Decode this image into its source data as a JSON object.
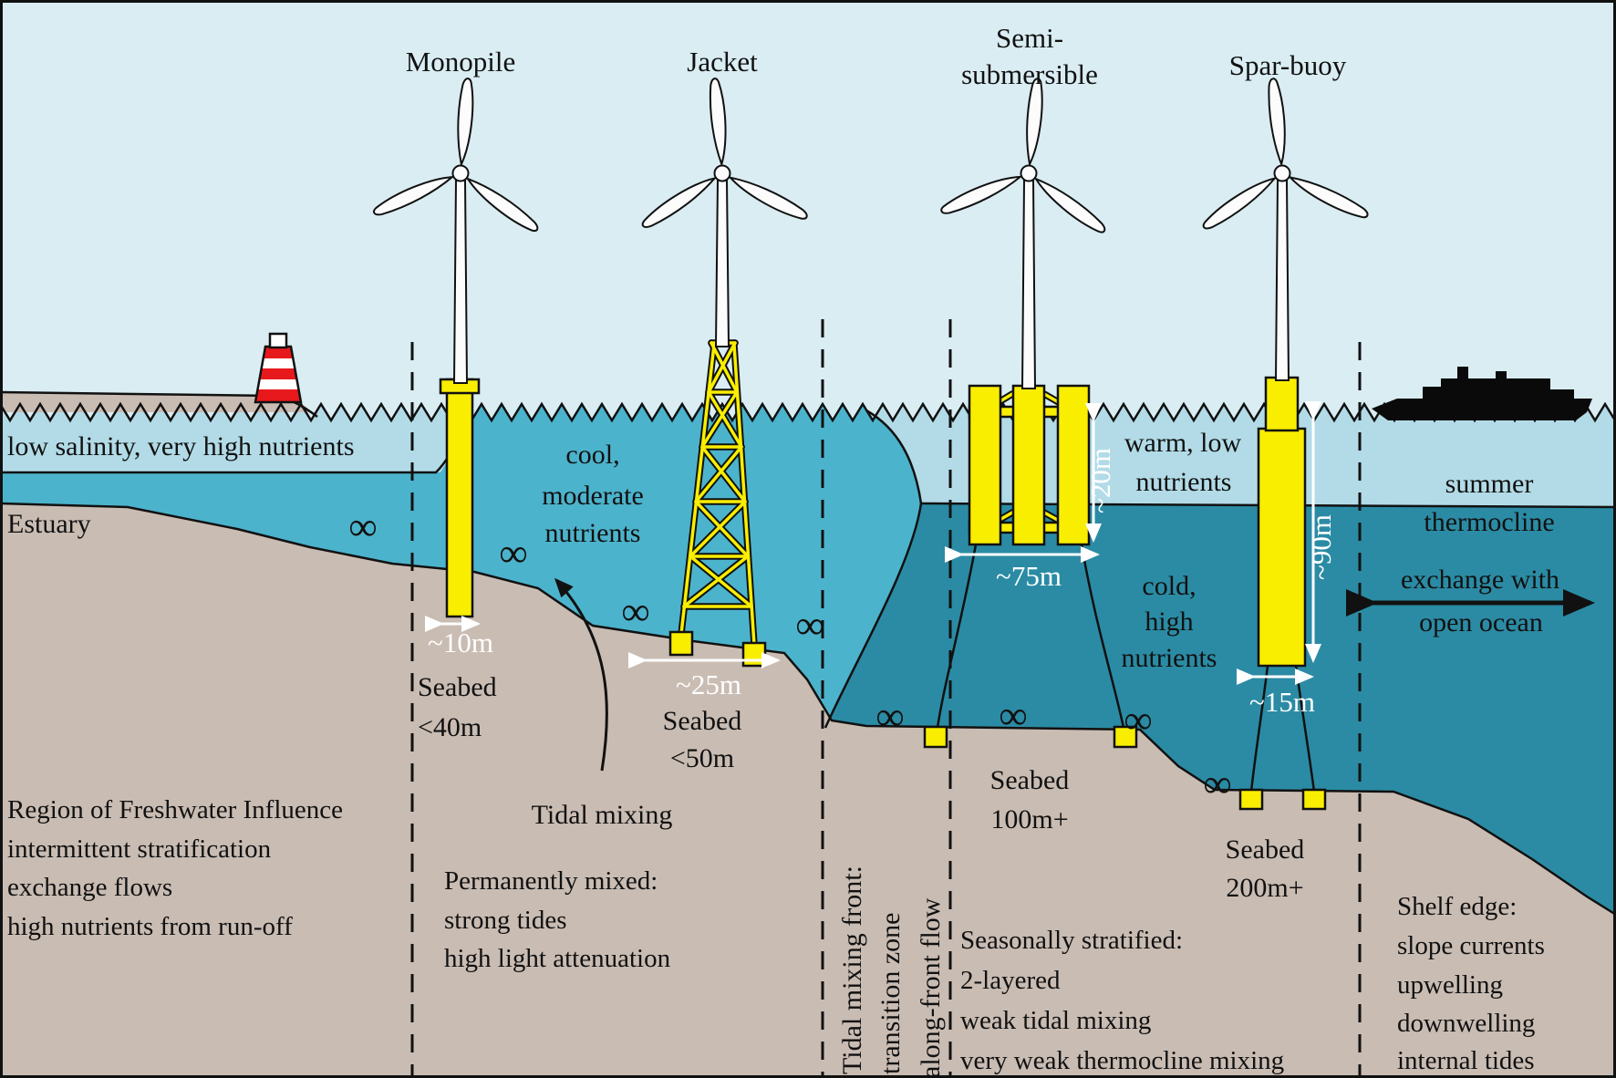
{
  "diagram": {
    "turbine_labels": {
      "monopile": "Monopile",
      "jacket": "Jacket",
      "semisub_line1": "Semi-",
      "semisub_line2": "submersible",
      "spar": "Spar-buoy"
    },
    "water_labels": {
      "low_salinity": "low salinity, very high nutrients",
      "estuary": "Estuary",
      "cool": [
        "cool,",
        "moderate",
        "nutrients"
      ],
      "warm": [
        "warm, low",
        "nutrients"
      ],
      "cold": [
        "cold,",
        "high",
        "nutrients"
      ],
      "summer": [
        "summer",
        "thermocline"
      ],
      "exchange": [
        "exchange with",
        "open ocean"
      ]
    },
    "seabed_labels": {
      "s40": [
        "Seabed",
        "<40m"
      ],
      "s50": [
        "Seabed",
        "<50m"
      ],
      "s100": [
        "Seabed",
        "100m+"
      ],
      "s200": [
        "Seabed",
        "200m+"
      ]
    },
    "dimensions": {
      "monopile_width": "~10m",
      "jacket_width": "~25m",
      "semisub_width": "~75m",
      "semisub_draft": "~20m",
      "spar_draft": "~90m",
      "spar_width": "~15m"
    },
    "zone_texts": {
      "rofi": [
        "Region of Freshwater Influence",
        "intermittent stratification",
        "exchange flows",
        "high nutrients from run-off"
      ],
      "mixed_title": "Tidal mixing",
      "mixed": [
        "Permanently mixed:",
        "strong tides",
        "high light attenuation"
      ],
      "front": [
        "Tidal mixing front:",
        "transition zone",
        "along-front flow"
      ],
      "stratified": [
        "Seasonally stratified:",
        "2-layered",
        "weak tidal mixing",
        "very weak thermocline mixing"
      ],
      "shelf": [
        "Shelf edge:",
        "slope currents",
        "upwelling",
        "downwelling",
        "internal tides"
      ]
    },
    "symbols": {
      "infinity": "∞"
    },
    "colors": {
      "sky": "#d9edf3",
      "surface_water": "#b2dbe7",
      "mixed_water": "#4cb3cc",
      "deep_water": "#2b8ba4",
      "seabed": "#c9bcb3",
      "structure_yellow": "#f9ee00",
      "lighthouse_red": "#e8191c"
    }
  }
}
